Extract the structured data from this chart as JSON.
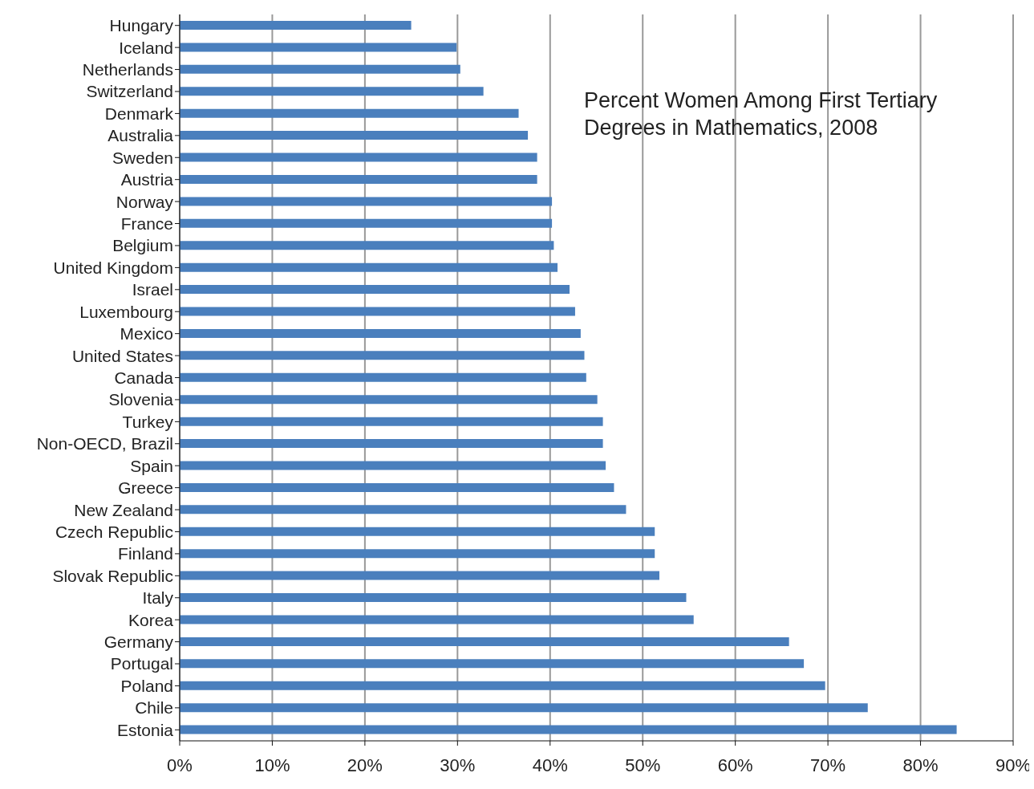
{
  "chart_data": {
    "type": "bar",
    "orientation": "horizontal",
    "title": "Percent Women Among First Tertiary Degrees in Mathematics, 2008",
    "categories": [
      "Hungary",
      "Iceland",
      "Netherlands",
      "Switzerland",
      "Denmark",
      "Australia",
      "Sweden",
      "Austria",
      "Norway",
      "France",
      "Belgium",
      "United Kingdom",
      "Israel",
      "Luxembourg",
      "Mexico",
      "United States",
      "Canada",
      "Slovenia",
      "Turkey",
      "Non-OECD, Brazil",
      "Spain",
      "Greece",
      "New Zealand",
      "Czech Republic",
      "Finland",
      "Slovak Republic",
      "Italy",
      "Korea",
      "Germany",
      "Portugal",
      "Poland",
      "Chile",
      "Estonia"
    ],
    "values": [
      25.0,
      29.9,
      30.3,
      32.8,
      36.6,
      37.6,
      38.6,
      38.6,
      40.2,
      40.2,
      40.4,
      40.8,
      42.1,
      42.7,
      43.3,
      43.7,
      43.9,
      45.1,
      45.7,
      45.7,
      46.0,
      46.9,
      48.2,
      51.3,
      51.3,
      51.8,
      54.7,
      55.5,
      65.8,
      67.4,
      69.7,
      74.3,
      83.9
    ],
    "color": "#4a7fbd",
    "xlim": [
      0,
      90
    ],
    "xticks": [
      {
        "value": 0,
        "label": "0%"
      },
      {
        "value": 10,
        "label": "10%"
      },
      {
        "value": 20,
        "label": "20%"
      },
      {
        "value": 30,
        "label": "30%"
      },
      {
        "value": 40,
        "label": "40%"
      },
      {
        "value": 50,
        "label": "50%"
      },
      {
        "value": 60,
        "label": "60%"
      },
      {
        "value": 70,
        "label": "70%"
      },
      {
        "value": 80,
        "label": "80%"
      },
      {
        "value": 90,
        "label": "90%"
      }
    ],
    "grid": "x"
  }
}
